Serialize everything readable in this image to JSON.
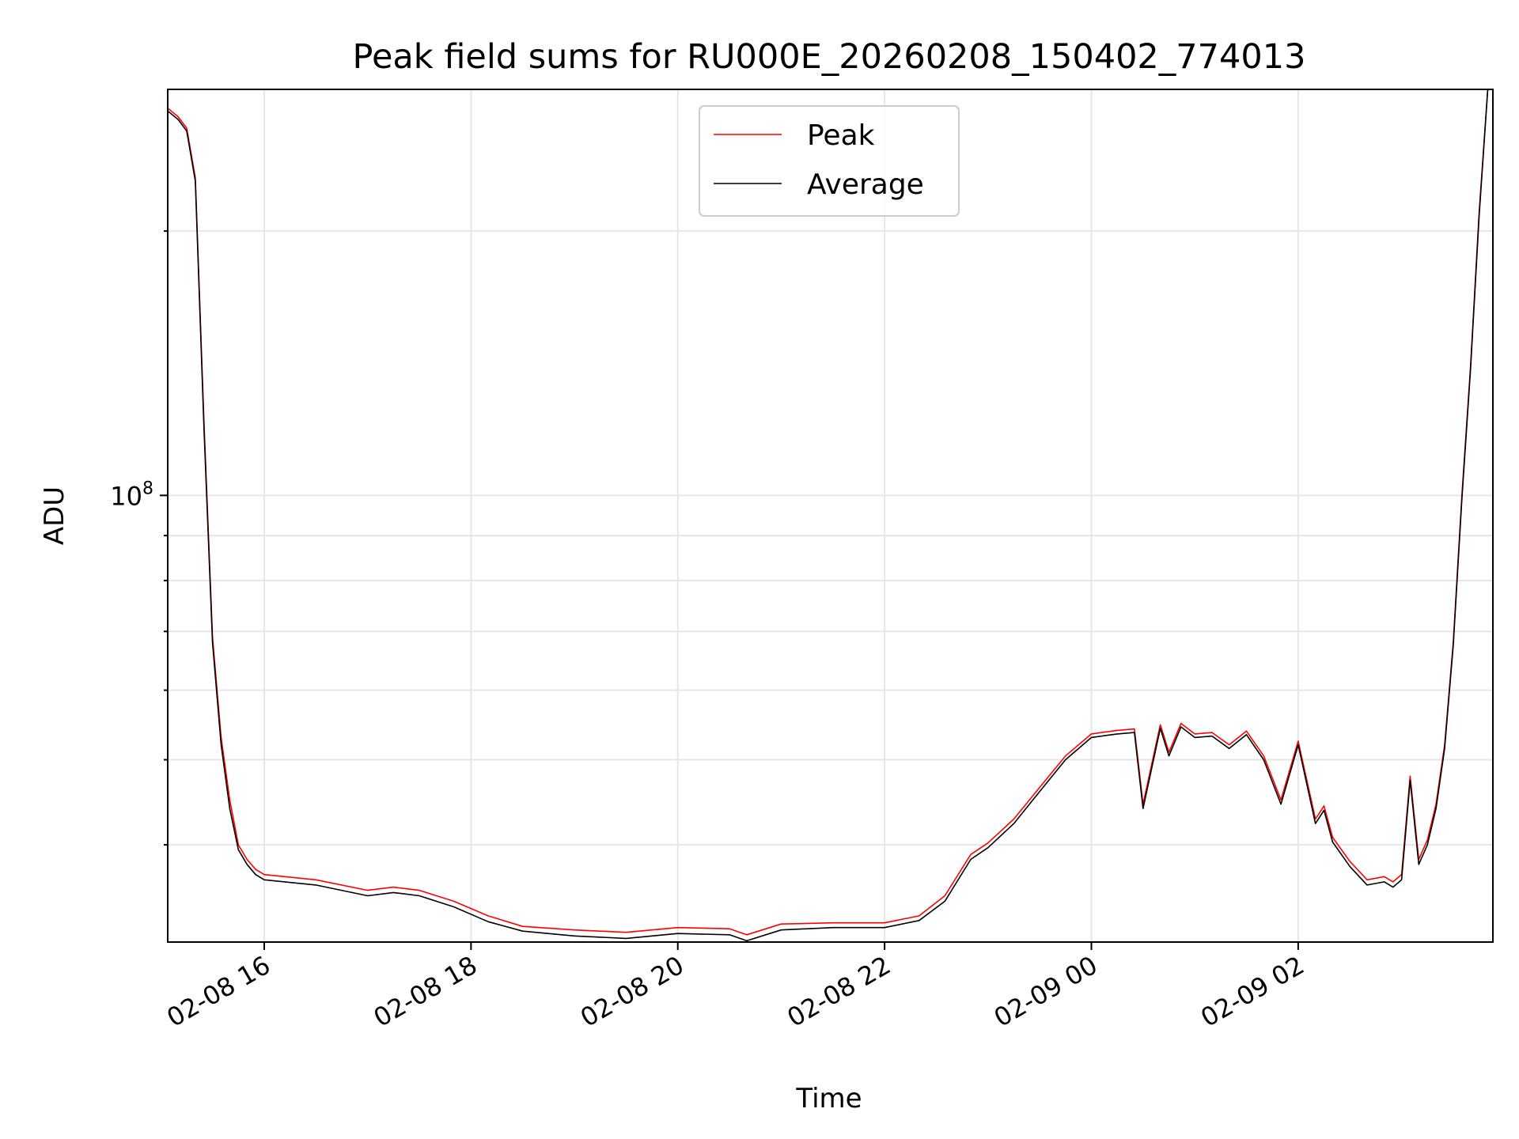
{
  "chart_data": {
    "type": "line",
    "title": "Peak field sums for RU000E_20260208_150402_774013",
    "xlabel": "Time",
    "ylabel": "ADU",
    "y_scale": "log",
    "ylim": [
      31000000,
      290000000
    ],
    "xlim": [
      "2026-02-08 15:04",
      "2026-02-09 03:53"
    ],
    "x_ticks": [
      {
        "value": "2026-02-08 16:00",
        "label": "02-08 16"
      },
      {
        "value": "2026-02-08 18:00",
        "label": "02-08 18"
      },
      {
        "value": "2026-02-08 20:00",
        "label": "02-08 20"
      },
      {
        "value": "2026-02-08 22:00",
        "label": "02-08 22"
      },
      {
        "value": "2026-02-09 00:00",
        "label": "02-09 00"
      },
      {
        "value": "2026-02-09 02:00",
        "label": "02-09 02"
      }
    ],
    "y_ticks": [
      {
        "value": 100000000,
        "base": "10",
        "exp": "8"
      }
    ],
    "grid": true,
    "legend_position": "upper-center",
    "series": [
      {
        "name": "Peak",
        "color": "#ff0000",
        "x": [
          "2026-02-08 15:04",
          "2026-02-08 15:10",
          "2026-02-08 15:15",
          "2026-02-08 15:20",
          "2026-02-08 15:25",
          "2026-02-08 15:30",
          "2026-02-08 15:35",
          "2026-02-08 15:40",
          "2026-02-08 15:45",
          "2026-02-08 15:50",
          "2026-02-08 15:55",
          "2026-02-08 16:00",
          "2026-02-08 16:30",
          "2026-02-08 17:00",
          "2026-02-08 17:15",
          "2026-02-08 17:30",
          "2026-02-08 17:50",
          "2026-02-08 18:10",
          "2026-02-08 18:30",
          "2026-02-08 19:00",
          "2026-02-08 19:30",
          "2026-02-08 20:00",
          "2026-02-08 20:30",
          "2026-02-08 20:40",
          "2026-02-08 21:00",
          "2026-02-08 21:30",
          "2026-02-08 22:00",
          "2026-02-08 22:20",
          "2026-02-08 22:35",
          "2026-02-08 22:50",
          "2026-02-08 23:00",
          "2026-02-08 23:15",
          "2026-02-08 23:30",
          "2026-02-08 23:45",
          "2026-02-09 00:00",
          "2026-02-09 00:15",
          "2026-02-09 00:25",
          "2026-02-09 00:30",
          "2026-02-09 00:40",
          "2026-02-09 00:45",
          "2026-02-09 00:52",
          "2026-02-09 01:00",
          "2026-02-09 01:10",
          "2026-02-09 01:20",
          "2026-02-09 01:30",
          "2026-02-09 01:40",
          "2026-02-09 01:50",
          "2026-02-09 02:00",
          "2026-02-09 02:10",
          "2026-02-09 02:15",
          "2026-02-09 02:20",
          "2026-02-09 02:30",
          "2026-02-09 02:40",
          "2026-02-09 02:50",
          "2026-02-09 02:55",
          "2026-02-09 03:00",
          "2026-02-09 03:05",
          "2026-02-09 03:10",
          "2026-02-09 03:15",
          "2026-02-09 03:20",
          "2026-02-09 03:25",
          "2026-02-09 03:30",
          "2026-02-09 03:35",
          "2026-02-09 03:40",
          "2026-02-09 03:45",
          "2026-02-09 03:50"
        ],
        "y": [
          276000000,
          270000000,
          262000000,
          230000000,
          122000000,
          69000000,
          53000000,
          45000000,
          40000000,
          38500000,
          37500000,
          37000000,
          36500000,
          35500000,
          35800000,
          35500000,
          34500000,
          33200000,
          32300000,
          32000000,
          31800000,
          32200000,
          32100000,
          31600000,
          32500000,
          32600000,
          32600000,
          33200000,
          35000000,
          39000000,
          40200000,
          42800000,
          46500000,
          50500000,
          53500000,
          54000000,
          54200000,
          44500000,
          54800000,
          51000000,
          55000000,
          53500000,
          53700000,
          52000000,
          53900000,
          50500000,
          45000000,
          52500000,
          42800000,
          44300000,
          40800000,
          38300000,
          36500000,
          36800000,
          36300000,
          37000000,
          47900000,
          38500000,
          40500000,
          44500000,
          52000000,
          68000000,
          100000000,
          140000000,
          210000000,
          290000000
        ]
      },
      {
        "name": "Average",
        "color": "#000000",
        "x": [
          "2026-02-08 15:04",
          "2026-02-08 15:10",
          "2026-02-08 15:15",
          "2026-02-08 15:20",
          "2026-02-08 15:25",
          "2026-02-08 15:30",
          "2026-02-08 15:35",
          "2026-02-08 15:40",
          "2026-02-08 15:45",
          "2026-02-08 15:50",
          "2026-02-08 15:55",
          "2026-02-08 16:00",
          "2026-02-08 16:30",
          "2026-02-08 17:00",
          "2026-02-08 17:15",
          "2026-02-08 17:30",
          "2026-02-08 17:50",
          "2026-02-08 18:10",
          "2026-02-08 18:30",
          "2026-02-08 19:00",
          "2026-02-08 19:30",
          "2026-02-08 20:00",
          "2026-02-08 20:30",
          "2026-02-08 20:40",
          "2026-02-08 21:00",
          "2026-02-08 21:30",
          "2026-02-08 22:00",
          "2026-02-08 22:20",
          "2026-02-08 22:35",
          "2026-02-08 22:50",
          "2026-02-08 23:00",
          "2026-02-08 23:15",
          "2026-02-08 23:30",
          "2026-02-08 23:45",
          "2026-02-09 00:00",
          "2026-02-09 00:15",
          "2026-02-09 00:25",
          "2026-02-09 00:30",
          "2026-02-09 00:40",
          "2026-02-09 00:45",
          "2026-02-09 00:52",
          "2026-02-09 01:00",
          "2026-02-09 01:10",
          "2026-02-09 01:20",
          "2026-02-09 01:30",
          "2026-02-09 01:40",
          "2026-02-09 01:50",
          "2026-02-09 02:00",
          "2026-02-09 02:10",
          "2026-02-09 02:15",
          "2026-02-09 02:20",
          "2026-02-09 02:30",
          "2026-02-09 02:40",
          "2026-02-09 02:50",
          "2026-02-09 02:55",
          "2026-02-09 03:00",
          "2026-02-09 03:05",
          "2026-02-09 03:10",
          "2026-02-09 03:15",
          "2026-02-09 03:20",
          "2026-02-09 03:25",
          "2026-02-09 03:30",
          "2026-02-09 03:35",
          "2026-02-09 03:40",
          "2026-02-09 03:45",
          "2026-02-09 03:50"
        ],
        "y": [
          274000000,
          268000000,
          260000000,
          228000000,
          120000000,
          68000000,
          52000000,
          44000000,
          39500000,
          38000000,
          37000000,
          36500000,
          36000000,
          35000000,
          35300000,
          35000000,
          34000000,
          32700000,
          31900000,
          31500000,
          31300000,
          31700000,
          31600000,
          31100000,
          32000000,
          32200000,
          32200000,
          32800000,
          34500000,
          38500000,
          39700000,
          42300000,
          46000000,
          50000000,
          53000000,
          53500000,
          53700000,
          44000000,
          54300000,
          50500000,
          54500000,
          53000000,
          53200000,
          51500000,
          53400000,
          50000000,
          44500000,
          52000000,
          42300000,
          43800000,
          40300000,
          37800000,
          36000000,
          36300000,
          35800000,
          36500000,
          47400000,
          38000000,
          40000000,
          44000000,
          51500000,
          67500000,
          99000000,
          139000000,
          208000000,
          290000000
        ]
      }
    ]
  }
}
